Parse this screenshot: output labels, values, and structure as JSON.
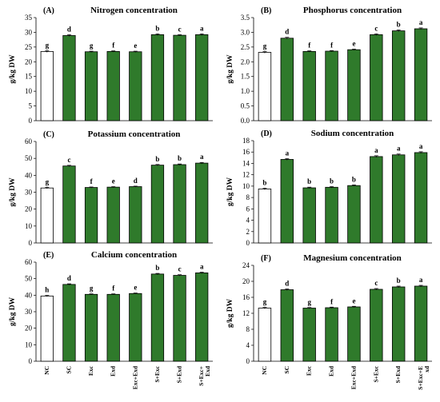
{
  "chart_data": [
    {
      "type": "bar",
      "panel": "(A)",
      "title": "Nitrogen concentration",
      "ylabel": "g/kg DW",
      "ylim": [
        0,
        35
      ],
      "yticks": [
        0,
        5,
        10,
        15,
        20,
        25,
        30,
        35
      ],
      "categories": [
        "NC",
        "SC",
        "Exc",
        "Exd",
        "Exc+Exd",
        "S+Exc",
        "S+Exd",
        "S+Exc+Exd"
      ],
      "values": [
        23.5,
        28.9,
        23.4,
        23.5,
        23.4,
        29.2,
        29.0,
        29.2
      ],
      "errors": [
        0.3,
        0.3,
        0.2,
        0.2,
        0.2,
        0.3,
        0.2,
        0.3
      ],
      "letters": [
        "g",
        "d",
        "g",
        "f",
        "e",
        "b",
        "c",
        "a"
      ]
    },
    {
      "type": "bar",
      "panel": "(B)",
      "title": "Phosphorus concentration",
      "ylabel": "g/kg DW",
      "ylim": [
        0,
        3.5
      ],
      "yticks": [
        "0.0",
        "0.5",
        "1.0",
        "1.5",
        "2.0",
        "2.5",
        "3.0",
        "3.5"
      ],
      "categories": [
        "NC",
        "SC",
        "Exc",
        "Exd",
        "Exc+Exd",
        "S+Exc",
        "S+Exd",
        "S+Exc+Exd"
      ],
      "values": [
        2.32,
        2.8,
        2.35,
        2.36,
        2.41,
        2.92,
        3.05,
        3.12
      ],
      "errors": [
        0.03,
        0.03,
        0.02,
        0.02,
        0.02,
        0.03,
        0.03,
        0.03
      ],
      "letters": [
        "g",
        "d",
        "f",
        "f",
        "e",
        "c",
        "b",
        "a"
      ]
    },
    {
      "type": "bar",
      "panel": "(C)",
      "title": "Potassium concentration",
      "ylabel": "g/kg DW",
      "ylim": [
        0,
        60
      ],
      "yticks": [
        0,
        10,
        20,
        30,
        40,
        50,
        60
      ],
      "categories": [
        "NC",
        "SC",
        "Exc",
        "Exd",
        "Exc+Exd",
        "S+Exc",
        "S+Exd",
        "S+Exc+Exd"
      ],
      "values": [
        32.5,
        45.5,
        32.8,
        33.0,
        33.3,
        46.0,
        46.3,
        47.2
      ],
      "errors": [
        0.4,
        0.4,
        0.3,
        0.3,
        0.3,
        0.4,
        0.4,
        0.4
      ],
      "letters": [
        "g",
        "c",
        "f",
        "e",
        "d",
        "b",
        "b",
        "a"
      ]
    },
    {
      "type": "bar",
      "panel": "(D)",
      "title": "Sodium concentration",
      "ylabel": "g/kg DW",
      "ylim": [
        0,
        18
      ],
      "yticks": [
        0,
        2,
        4,
        6,
        8,
        10,
        12,
        14,
        16,
        18
      ],
      "categories": [
        "NC",
        "SC",
        "Exc",
        "Exd",
        "Exc+Exd",
        "S+Exc",
        "S+Exd",
        "S+Exc+Exd"
      ],
      "values": [
        9.5,
        14.7,
        9.7,
        9.8,
        10.1,
        15.2,
        15.5,
        15.9
      ],
      "errors": [
        0.15,
        0.15,
        0.12,
        0.12,
        0.12,
        0.15,
        0.15,
        0.15
      ],
      "letters": [
        "b",
        "a",
        "b",
        "b",
        "b",
        "a",
        "a",
        "a"
      ]
    },
    {
      "type": "bar",
      "panel": "(E)",
      "title": "Calcium concentration",
      "ylabel": "g/kg DW",
      "ylim": [
        0,
        60
      ],
      "yticks": [
        0,
        10,
        20,
        30,
        40,
        50,
        60
      ],
      "categories": [
        "NC",
        "SC",
        "Exc",
        "Exd",
        "Exc+Exd",
        "S+Exc",
        "S+Exd",
        "S+Exc+Exd"
      ],
      "category_labels": [
        "NC",
        "SC",
        "Exc",
        "Exd",
        "Exc+Exd",
        "S+Exc",
        "S+Exd",
        "S+Exc+|Exd"
      ],
      "values": [
        39.5,
        46.5,
        40.5,
        40.5,
        41.0,
        52.8,
        52.0,
        53.5
      ],
      "errors": [
        0.4,
        0.4,
        0.3,
        0.3,
        0.3,
        0.4,
        0.4,
        0.4
      ],
      "letters": [
        "h",
        "d",
        "g",
        "f",
        "e",
        "b",
        "c",
        "a"
      ]
    },
    {
      "type": "bar",
      "panel": "(F)",
      "title": "Magnesium concentration",
      "ylabel": "g/kg DW",
      "ylim": [
        0,
        24
      ],
      "yticks": [
        0,
        4,
        8,
        12,
        16,
        20,
        24
      ],
      "categories": [
        "NC",
        "SC",
        "Exc",
        "Exd",
        "Exc+Exd",
        "S+Exc",
        "S+Exd",
        "S+Exc+Exd"
      ],
      "category_labels": [
        "NC",
        "SC",
        "Exc",
        "Exd",
        "Exc+Exd",
        "S+Exc",
        "S+Exd",
        "S+Exc+E|xd"
      ],
      "values": [
        13.3,
        17.9,
        13.3,
        13.4,
        13.6,
        18.0,
        18.6,
        18.8
      ],
      "errors": [
        0.2,
        0.2,
        0.15,
        0.15,
        0.15,
        0.2,
        0.2,
        0.2
      ],
      "letters": [
        "g",
        "d",
        "g",
        "f",
        "e",
        "c",
        "b",
        "a"
      ]
    }
  ],
  "colors": {
    "control_fill": "#ffffff",
    "treatment_fill": "#2f7a2b",
    "bar_stroke": "#000000"
  }
}
